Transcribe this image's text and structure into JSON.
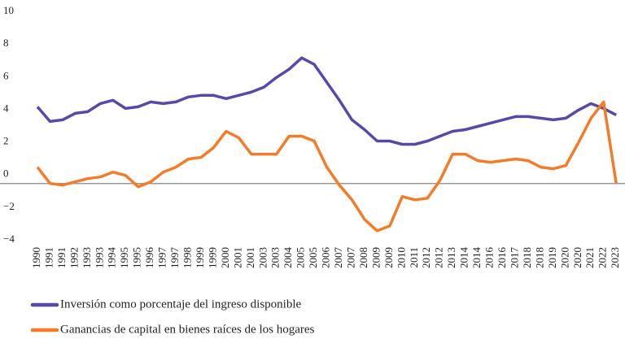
{
  "chart_data": {
    "type": "line",
    "categories": [
      "1990",
      "1991",
      "1991",
      "1992",
      "1993",
      "1993",
      "1994",
      "1995",
      "1995",
      "1996",
      "1997",
      "1997",
      "1998",
      "1999",
      "1999",
      "2000",
      "2001",
      "2001",
      "2003",
      "2003",
      "2004",
      "2005",
      "2005",
      "2006",
      "2007",
      "2007",
      "2008",
      "2009",
      "2009",
      "2010",
      "2011",
      "2012",
      "2012",
      "2013",
      "2014",
      "2014",
      "2016",
      "2016",
      "2017",
      "2018",
      "2018",
      "2019",
      "2020",
      "2020",
      "2021",
      "2022",
      "2023"
    ],
    "series": [
      {
        "name": "Inversión como porcentaje del ingreso disponible",
        "color": "#5a48a8",
        "values": [
          4.7,
          3.8,
          3.9,
          4.3,
          4.4,
          4.9,
          5.1,
          4.6,
          4.7,
          5.0,
          4.9,
          5.0,
          5.3,
          5.4,
          5.4,
          5.2,
          5.4,
          5.6,
          5.9,
          6.5,
          7.0,
          7.7,
          7.3,
          6.2,
          5.1,
          3.9,
          3.3,
          2.6,
          2.6,
          2.4,
          2.4,
          2.6,
          2.9,
          3.2,
          3.3,
          3.5,
          3.7,
          3.9,
          4.1,
          4.1,
          4.0,
          3.9,
          4.0,
          4.5,
          4.9,
          4.6,
          4.2
        ]
      },
      {
        "name": "Ganancias de capital en bienes raíces de los hogares",
        "color": "#f47b28",
        "values": [
          1.0,
          0.0,
          -0.1,
          0.1,
          0.3,
          0.4,
          0.7,
          0.5,
          -0.2,
          0.1,
          0.7,
          1.0,
          1.5,
          1.6,
          2.2,
          3.2,
          2.8,
          1.8,
          1.8,
          1.8,
          2.9,
          2.9,
          2.6,
          1.0,
          -0.1,
          -1.0,
          -2.2,
          -2.9,
          -2.6,
          -0.8,
          -1.0,
          -0.9,
          0.2,
          1.8,
          1.8,
          1.4,
          1.3,
          1.4,
          1.5,
          1.4,
          1.0,
          0.9,
          1.1,
          2.5,
          4.0,
          5.0,
          0.0
        ]
      }
    ],
    "ylim": [
      -4,
      10
    ],
    "yticks": [
      {
        "value": -4,
        "label": "−4"
      },
      {
        "value": -2,
        "label": "−2"
      },
      0,
      2,
      4,
      6,
      8,
      10
    ]
  }
}
